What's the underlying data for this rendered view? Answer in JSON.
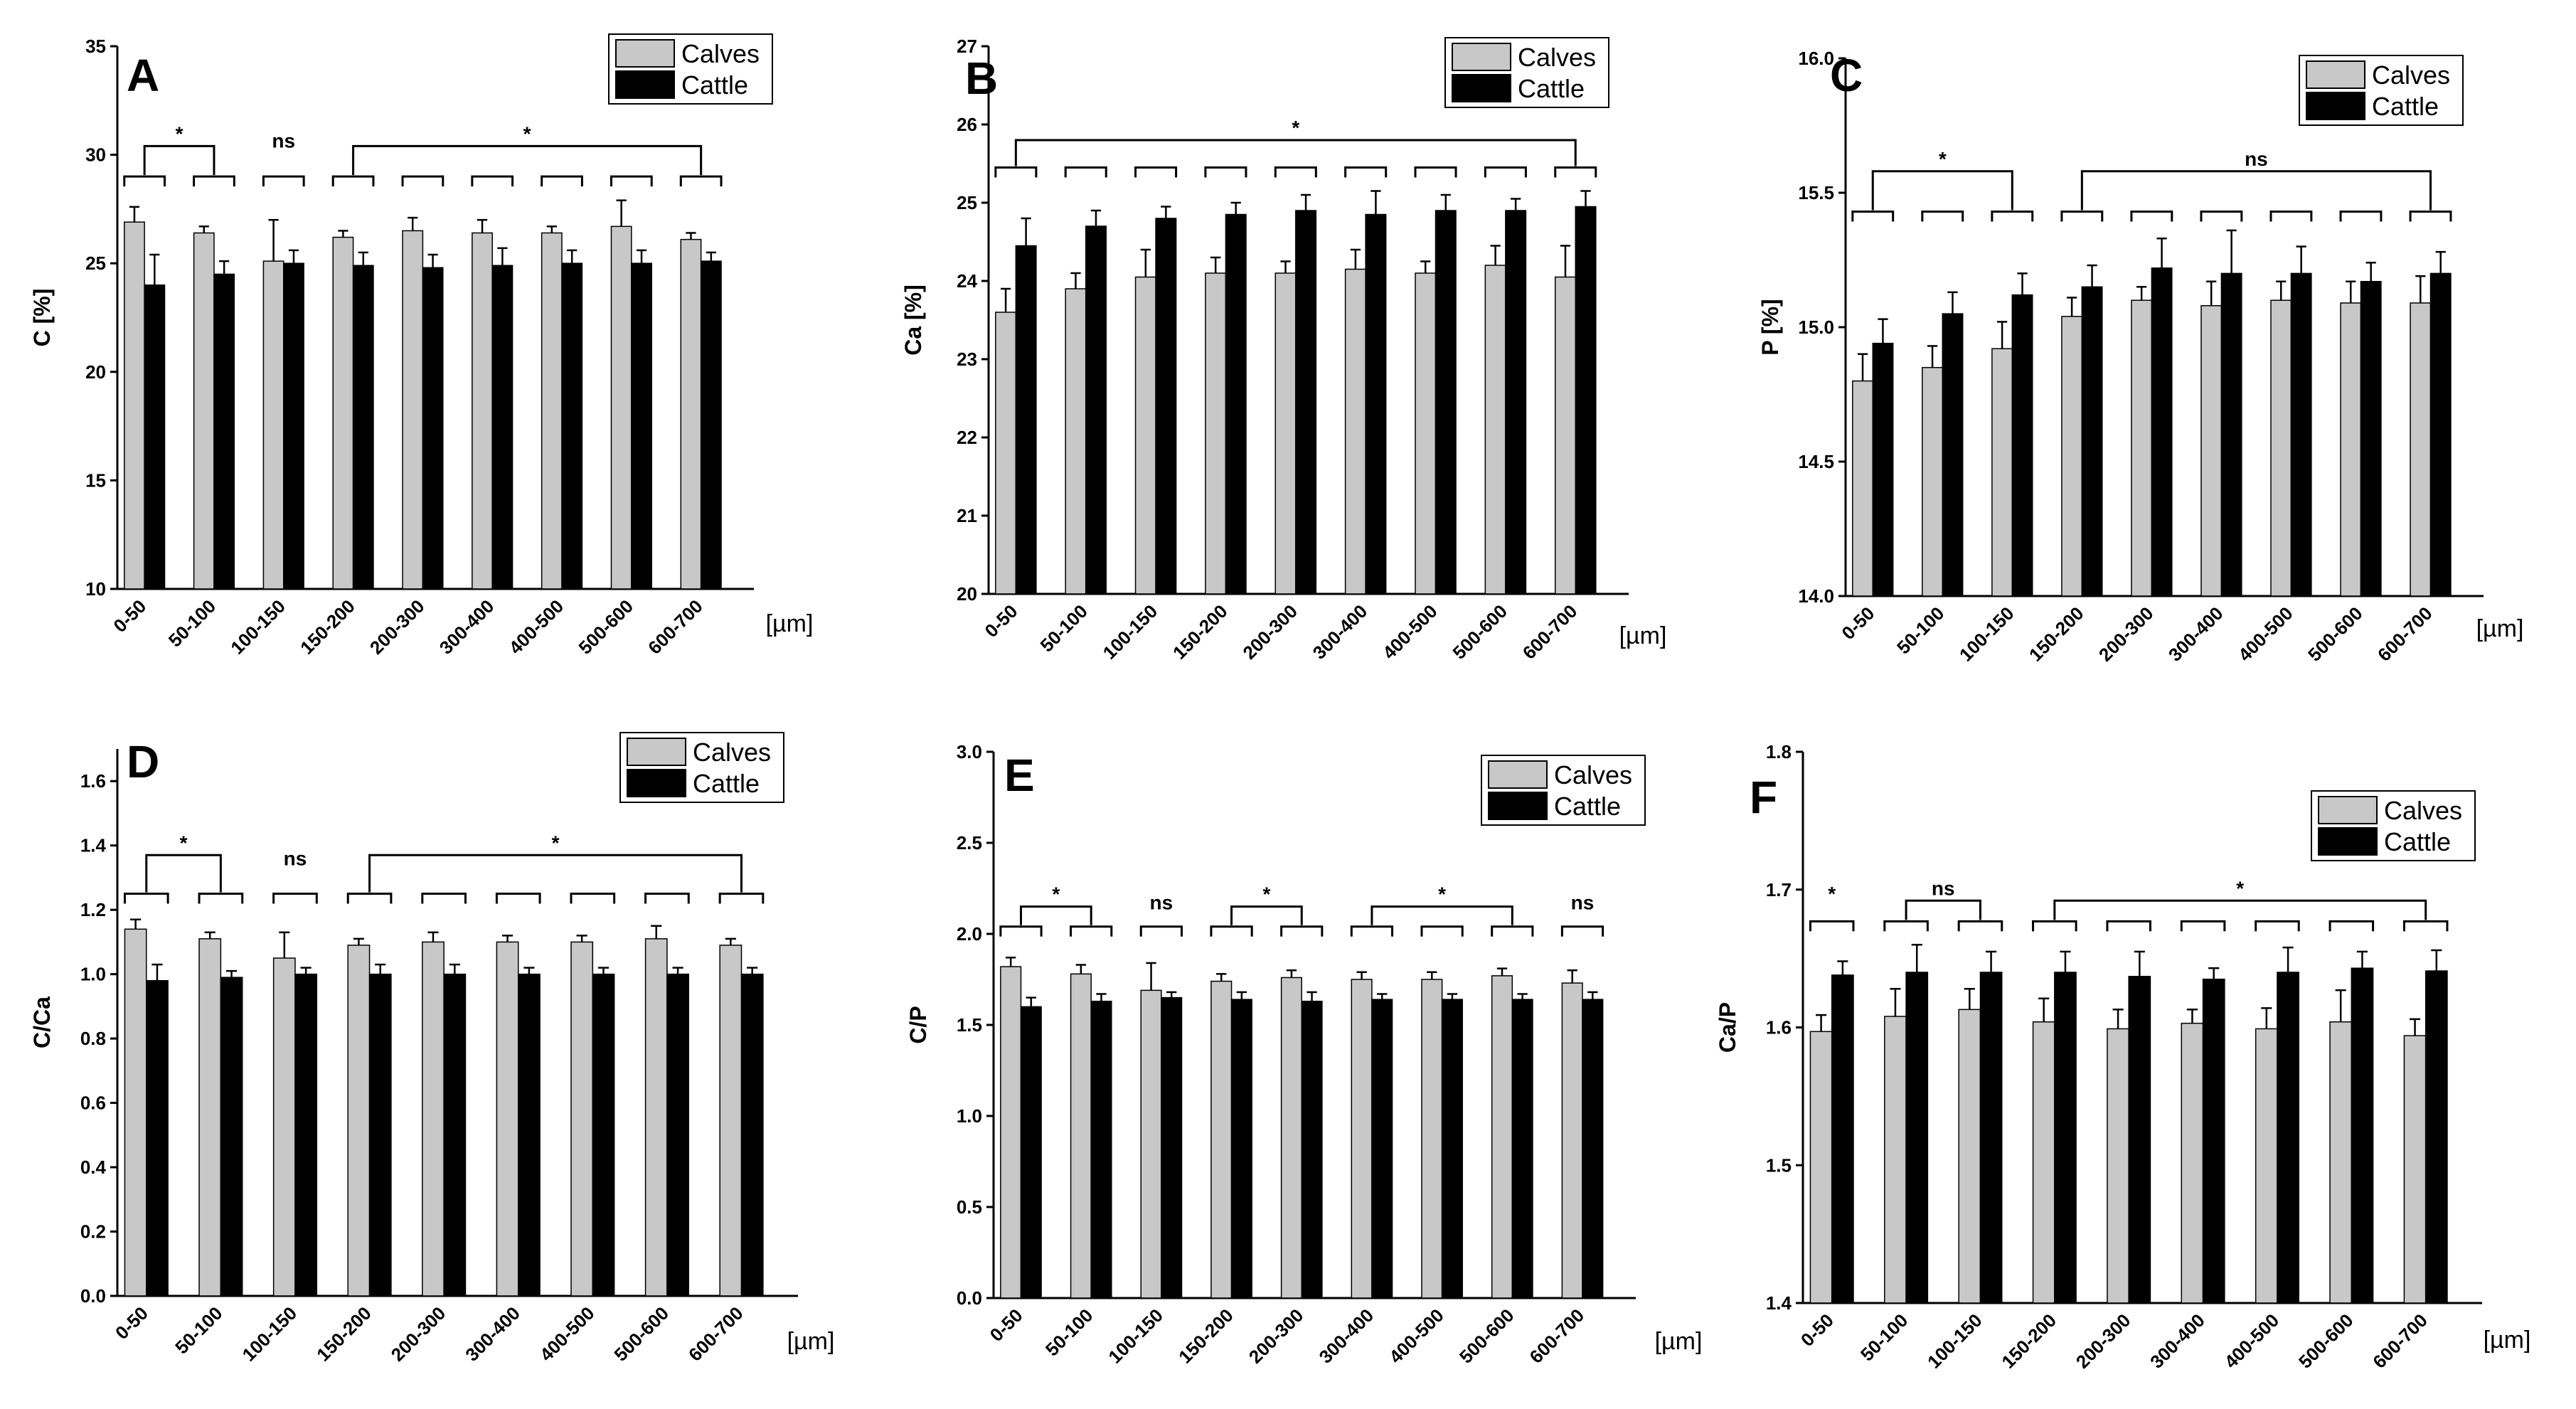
{
  "figure": {
    "legend": {
      "series1": "Calves",
      "series2": "Cattle"
    },
    "unit": "[µm]",
    "colors": {
      "calves": "#c8c8c8",
      "cattle": "#000000",
      "axis": "#000000",
      "background": "#ffffff"
    }
  },
  "chart_data": [
    {
      "panel": "A",
      "type": "bar",
      "title": "A",
      "ylabel": "C [%]",
      "xlabel": "[µm]",
      "ylim": [
        10,
        35
      ],
      "yticks": [
        10,
        15,
        20,
        25,
        30,
        35
      ],
      "yticks_text": [
        "10",
        "15",
        "20",
        "25",
        "30",
        "35"
      ],
      "categories": [
        "0-50",
        "50-100",
        "100-150",
        "150-200",
        "200-300",
        "300-400",
        "400-500",
        "500-600",
        "600-700"
      ],
      "series": [
        {
          "name": "Calves",
          "values": [
            26.9,
            26.4,
            25.1,
            26.2,
            26.5,
            26.4,
            26.4,
            26.7,
            26.1
          ],
          "errors": [
            0.7,
            0.3,
            1.9,
            0.3,
            0.6,
            0.6,
            0.3,
            1.2,
            0.3
          ]
        },
        {
          "name": "Cattle",
          "values": [
            24.0,
            24.5,
            25.0,
            24.9,
            24.8,
            24.9,
            25.0,
            25.0,
            25.1
          ],
          "errors": [
            1.4,
            0.6,
            0.6,
            0.6,
            0.6,
            0.8,
            0.6,
            0.6,
            0.4
          ]
        }
      ],
      "pair_caps": [
        0,
        1,
        2,
        3,
        4,
        5,
        6,
        7,
        8
      ],
      "cap_value": 29.0,
      "brackets": [
        {
          "from": 0,
          "to": 1,
          "label": "*",
          "value": 30.4
        },
        {
          "from": 2,
          "to": 2,
          "label": "ns",
          "value": 30.2
        },
        {
          "from": 3,
          "to": 8,
          "label": "*",
          "value": 30.4
        }
      ]
    },
    {
      "panel": "B",
      "type": "bar",
      "title": "B",
      "ylabel": "Ca [%]",
      "xlabel": "[µm]",
      "ylim": [
        20,
        27
      ],
      "yticks": [
        20,
        21,
        22,
        23,
        24,
        25,
        26,
        27
      ],
      "yticks_text": [
        "20",
        "21",
        "22",
        "23",
        "24",
        "25",
        "26",
        "27"
      ],
      "categories": [
        "0-50",
        "50-100",
        "100-150",
        "150-200",
        "200-300",
        "300-400",
        "400-500",
        "500-600",
        "600-700"
      ],
      "series": [
        {
          "name": "Calves",
          "values": [
            23.6,
            23.9,
            24.05,
            24.1,
            24.1,
            24.15,
            24.1,
            24.2,
            24.05
          ],
          "errors": [
            0.3,
            0.2,
            0.35,
            0.2,
            0.15,
            0.25,
            0.15,
            0.25,
            0.4
          ]
        },
        {
          "name": "Cattle",
          "values": [
            24.45,
            24.7,
            24.8,
            24.85,
            24.9,
            24.85,
            24.9,
            24.9,
            24.95
          ],
          "errors": [
            0.35,
            0.2,
            0.15,
            0.15,
            0.2,
            0.3,
            0.2,
            0.15,
            0.2
          ]
        }
      ],
      "pair_caps": [
        0,
        1,
        2,
        3,
        4,
        5,
        6,
        7,
        8
      ],
      "cap_value": 25.45,
      "brackets": [
        {
          "from": 0,
          "to": 8,
          "label": "*",
          "value": 25.8
        }
      ]
    },
    {
      "panel": "C",
      "type": "bar",
      "title": "C",
      "ylabel": "P [%]",
      "xlabel": "[µm]",
      "ylim": [
        14.0,
        16.0
      ],
      "yticks": [
        14.0,
        14.5,
        15.0,
        15.5,
        16.0
      ],
      "yticks_text": [
        "14.0",
        "14.5",
        "15.0",
        "15.5",
        "16.0"
      ],
      "categories": [
        "0-50",
        "50-100",
        "100-150",
        "150-200",
        "200-300",
        "300-400",
        "400-500",
        "500-600",
        "600-700"
      ],
      "series": [
        {
          "name": "Calves",
          "values": [
            14.8,
            14.85,
            14.92,
            15.04,
            15.1,
            15.08,
            15.1,
            15.09,
            15.09
          ],
          "errors": [
            0.1,
            0.08,
            0.1,
            0.07,
            0.05,
            0.09,
            0.07,
            0.08,
            0.1
          ]
        },
        {
          "name": "Cattle",
          "values": [
            14.94,
            15.05,
            15.12,
            15.15,
            15.22,
            15.2,
            15.2,
            15.17,
            15.2
          ],
          "errors": [
            0.09,
            0.08,
            0.08,
            0.08,
            0.11,
            0.16,
            0.1,
            0.07,
            0.08
          ]
        }
      ],
      "pair_caps": [
        0,
        1,
        2,
        3,
        4,
        5,
        6,
        7,
        8
      ],
      "cap_value": 15.43,
      "brackets": [
        {
          "from": 0,
          "to": 2,
          "label": "*",
          "value": 15.58
        },
        {
          "from": 3,
          "to": 8,
          "label": "ns",
          "value": 15.58
        }
      ]
    },
    {
      "panel": "D",
      "type": "bar",
      "title": "D",
      "ylabel": "C/Ca",
      "xlabel": "[µm]",
      "ylim": [
        0,
        1.7
      ],
      "yticks": [
        0.0,
        0.2,
        0.4,
        0.6,
        0.8,
        1.0,
        1.2,
        1.4,
        1.6
      ],
      "yticks_text": [
        "0.0",
        "0.2",
        "0.4",
        "0.6",
        "0.8",
        "1.0",
        "1.2",
        "1.4",
        "1.6"
      ],
      "categories": [
        "0-50",
        "50-100",
        "100-150",
        "150-200",
        "200-300",
        "300-400",
        "400-500",
        "500-600",
        "600-700"
      ],
      "series": [
        {
          "name": "Calves",
          "values": [
            1.14,
            1.11,
            1.05,
            1.09,
            1.1,
            1.1,
            1.1,
            1.11,
            1.09
          ],
          "errors": [
            0.03,
            0.02,
            0.08,
            0.02,
            0.03,
            0.02,
            0.02,
            0.04,
            0.02
          ]
        },
        {
          "name": "Cattle",
          "values": [
            0.98,
            0.99,
            1.0,
            1.0,
            1.0,
            1.0,
            1.0,
            1.0,
            1.0
          ],
          "errors": [
            0.05,
            0.02,
            0.02,
            0.03,
            0.03,
            0.02,
            0.02,
            0.02,
            0.02
          ]
        }
      ],
      "pair_caps": [
        0,
        1,
        2,
        3,
        4,
        5,
        6,
        7,
        8
      ],
      "cap_value": 1.25,
      "brackets": [
        {
          "from": 0,
          "to": 1,
          "label": "*",
          "value": 1.37
        },
        {
          "from": 2,
          "to": 2,
          "label": "ns",
          "value": 1.33
        },
        {
          "from": 3,
          "to": 8,
          "label": "*",
          "value": 1.37
        }
      ]
    },
    {
      "panel": "E",
      "type": "bar",
      "title": "E",
      "ylabel": "C/P",
      "xlabel": "[µm]",
      "ylim": [
        0,
        3.0
      ],
      "yticks": [
        0.0,
        0.5,
        1.0,
        1.5,
        2.0,
        2.5,
        3.0
      ],
      "yticks_text": [
        "0.0",
        "0.5",
        "1.0",
        "1.5",
        "2.0",
        "2.5",
        "3.0"
      ],
      "categories": [
        "0-50",
        "50-100",
        "100-150",
        "150-200",
        "200-300",
        "300-400",
        "400-500",
        "500-600",
        "600-700"
      ],
      "series": [
        {
          "name": "Calves",
          "values": [
            1.82,
            1.78,
            1.69,
            1.74,
            1.76,
            1.75,
            1.75,
            1.77,
            1.73
          ],
          "errors": [
            0.05,
            0.05,
            0.15,
            0.04,
            0.04,
            0.04,
            0.04,
            0.04,
            0.07
          ]
        },
        {
          "name": "Cattle",
          "values": [
            1.6,
            1.63,
            1.65,
            1.64,
            1.63,
            1.64,
            1.64,
            1.64,
            1.64
          ],
          "errors": [
            0.05,
            0.04,
            0.03,
            0.04,
            0.05,
            0.03,
            0.03,
            0.03,
            0.04
          ]
        }
      ],
      "pair_caps": [
        0,
        1,
        2,
        3,
        4,
        5,
        6,
        7,
        8
      ],
      "cap_value": 2.04,
      "brackets": [
        {
          "from": 0,
          "to": 1,
          "label": "*",
          "value": 2.15
        },
        {
          "from": 2,
          "to": 2,
          "label": "ns",
          "value": 2.12
        },
        {
          "from": 3,
          "to": 4,
          "label": "*",
          "value": 2.15
        },
        {
          "from": 5,
          "to": 7,
          "label": "*",
          "value": 2.15
        },
        {
          "from": 8,
          "to": 8,
          "label": "ns",
          "value": 2.12
        }
      ]
    },
    {
      "panel": "F",
      "type": "bar",
      "title": "F",
      "ylabel": "Ca/P",
      "xlabel": "[µm]",
      "ylim": [
        1.4,
        1.8
      ],
      "yticks": [
        1.4,
        1.5,
        1.6,
        1.7,
        1.8
      ],
      "yticks_text": [
        "1.4",
        "1.5",
        "1.6",
        "1.7",
        "1.8"
      ],
      "categories": [
        "0-50",
        "50-100",
        "100-150",
        "150-200",
        "200-300",
        "300-400",
        "400-500",
        "500-600",
        "600-700"
      ],
      "series": [
        {
          "name": "Calves",
          "values": [
            1.597,
            1.608,
            1.613,
            1.604,
            1.599,
            1.603,
            1.599,
            1.604,
            1.594
          ],
          "errors": [
            0.012,
            0.02,
            0.015,
            0.017,
            0.014,
            0.01,
            0.015,
            0.023,
            0.012
          ]
        },
        {
          "name": "Cattle",
          "values": [
            1.638,
            1.64,
            1.64,
            1.64,
            1.637,
            1.635,
            1.64,
            1.643,
            1.641
          ],
          "errors": [
            0.01,
            0.02,
            0.015,
            0.015,
            0.018,
            0.008,
            0.018,
            0.012,
            0.015
          ]
        }
      ],
      "pair_caps": [
        0,
        1,
        2,
        3,
        4,
        5,
        6,
        7,
        8
      ],
      "cap_value": 1.677,
      "brackets": [
        {
          "from": 0,
          "to": 0,
          "label": "*",
          "value": 1.69
        },
        {
          "from": 1,
          "to": 2,
          "label": "ns",
          "value": 1.692
        },
        {
          "from": 3,
          "to": 8,
          "label": "*",
          "value": 1.692
        }
      ]
    }
  ]
}
